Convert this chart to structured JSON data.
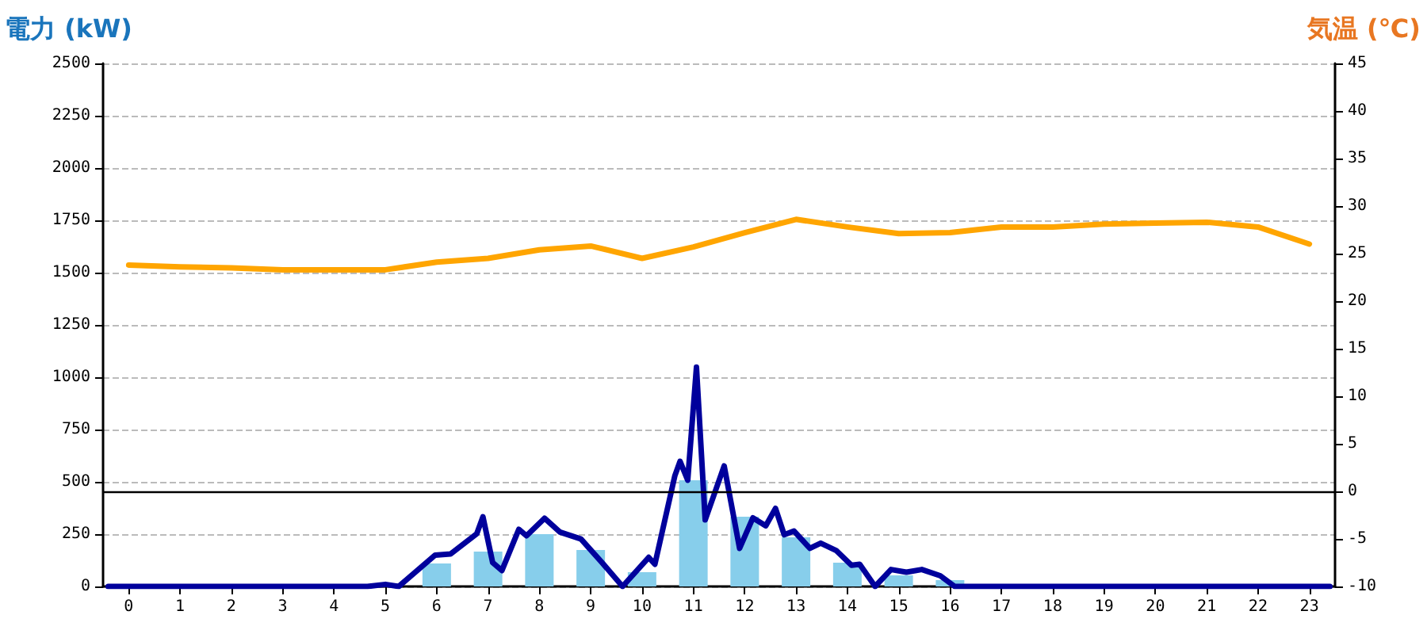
{
  "chart_data": {
    "type": "line",
    "ylabel": "電力 (kW)",
    "y2label": "気温 (℃)",
    "x": [
      0,
      1,
      2,
      3,
      4,
      5,
      6,
      7,
      8,
      9,
      10,
      11,
      12,
      13,
      14,
      15,
      16,
      17,
      18,
      19,
      20,
      21,
      22,
      23
    ],
    "xlim": [
      -0.5,
      23.5
    ],
    "xticks": [
      0,
      1,
      2,
      3,
      4,
      5,
      6,
      7,
      8,
      9,
      10,
      11,
      12,
      13,
      14,
      15,
      16,
      17,
      18,
      19,
      20,
      21,
      22,
      23
    ],
    "ylim": [
      0,
      2500
    ],
    "yticks": [
      0,
      250,
      500,
      750,
      1000,
      1250,
      1500,
      1750,
      2000,
      2250,
      2500
    ],
    "y2lim": [
      -10,
      45
    ],
    "y2ticks": [
      -10,
      -5,
      0,
      5,
      10,
      15,
      20,
      25,
      30,
      35,
      40,
      45
    ],
    "grid": "y",
    "marker": "none",
    "line_style": "solid",
    "ref_lines": [
      {
        "axis": "y2",
        "value": 0,
        "color": "#000000"
      }
    ],
    "series": [
      {
        "type": "bar",
        "color": "#87ceeb",
        "values": [
          0,
          0,
          0,
          0,
          0,
          0,
          110,
          167,
          250,
          174,
          68,
          508,
          333,
          235,
          114,
          53,
          30,
          0,
          0,
          0,
          0,
          0,
          0,
          0
        ]
      },
      {
        "color": "#00009c",
        "x": [
          -0.4,
          4.65,
          5.0,
          5.26,
          5.97,
          6.27,
          6.78,
          6.9,
          7.09,
          7.27,
          7.6,
          7.75,
          8.1,
          8.4,
          8.81,
          9.22,
          9.62,
          10.13,
          10.25,
          10.64,
          10.74,
          10.89,
          11.06,
          11.23,
          11.6,
          11.9,
          12.16,
          12.41,
          12.6,
          12.77,
          12.96,
          13.27,
          13.48,
          13.78,
          14.08,
          14.24,
          14.54,
          14.85,
          15.15,
          15.45,
          15.81,
          16.09,
          23.4
        ],
        "values": [
          0,
          0,
          10,
          0,
          150,
          155,
          252,
          333,
          114,
          76,
          273,
          242,
          326,
          260,
          227,
          114,
          0,
          139,
          106,
          530,
          598,
          508,
          1048,
          318,
          576,
          182,
          328,
          290,
          373,
          247,
          265,
          182,
          207,
          172,
          101,
          106,
          0,
          81,
          68,
          81,
          51,
          0,
          0
        ]
      },
      {
        "type": "line",
        "axis": "y2",
        "color": "#ffa500",
        "values": [
          23.8,
          23.6,
          23.5,
          23.3,
          23.3,
          23.3,
          24.1,
          24.5,
          25.4,
          25.8,
          24.5,
          25.7,
          27.2,
          28.6,
          27.8,
          27.1,
          27.2,
          27.8,
          27.8,
          28.1,
          28.2,
          28.3,
          27.8,
          26
        ]
      }
    ]
  }
}
